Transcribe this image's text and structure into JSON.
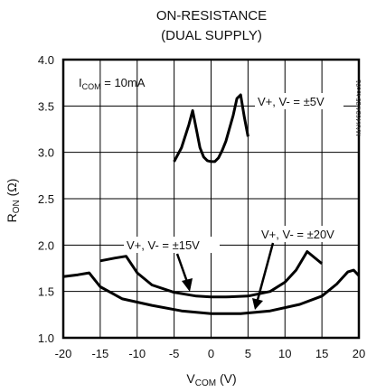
{
  "chart_data": {
    "type": "line",
    "title": "ON-RESISTANCE",
    "subtitle": "(DUAL SUPPLY)",
    "xlabel_main": "V",
    "xlabel_sub": "COM",
    "xlabel_unit": " (V)",
    "ylabel_main": "R",
    "ylabel_sub": "ON",
    "ylabel_unit": " (Ω)",
    "xlim": [
      -20,
      20
    ],
    "ylim": [
      1.0,
      4.0
    ],
    "xticks": [
      -20,
      -15,
      -10,
      -5,
      0,
      5,
      10,
      15,
      20
    ],
    "xtick_labels": [
      "-20",
      "-15",
      "-10",
      "-5",
      "0",
      "5",
      "10",
      "15",
      "20"
    ],
    "yticks": [
      1.0,
      1.5,
      2.0,
      2.5,
      3.0,
      3.5,
      4.0
    ],
    "ytick_labels": [
      "1.0",
      "1.5",
      "2.0",
      "2.5",
      "3.0",
      "3.5",
      "4.0"
    ],
    "grid": true,
    "condition_main": "I",
    "condition_sub": "COM",
    "condition_rest": " = 10mA",
    "series": [
      {
        "name": "V+, V- = ±5V",
        "x": [
          -5,
          -4,
          -3,
          -2.5,
          -2,
          -1.5,
          -1,
          -0.5,
          0,
          0.5,
          1,
          1.5,
          2,
          3,
          3.5,
          4,
          4.5,
          5
        ],
        "y": [
          2.9,
          3.05,
          3.3,
          3.45,
          3.25,
          3.05,
          2.95,
          2.91,
          2.9,
          2.9,
          2.94,
          3.02,
          3.12,
          3.4,
          3.58,
          3.62,
          3.38,
          3.17
        ]
      },
      {
        "name": "V+, V- = ±15V",
        "x": [
          -15,
          -13,
          -11.5,
          -10,
          -8,
          -5,
          -2,
          0,
          2,
          5,
          8,
          10,
          11.5,
          13,
          15
        ],
        "y": [
          1.83,
          1.86,
          1.88,
          1.7,
          1.57,
          1.49,
          1.45,
          1.44,
          1.44,
          1.45,
          1.5,
          1.6,
          1.73,
          1.93,
          1.8
        ]
      },
      {
        "name": "V+, V- = ±20V",
        "x": [
          -20,
          -18,
          -16.5,
          -15,
          -12,
          -8,
          -4,
          0,
          4,
          8,
          12,
          15,
          17,
          18.5,
          19.3,
          20
        ],
        "y": [
          1.66,
          1.68,
          1.7,
          1.55,
          1.42,
          1.35,
          1.29,
          1.26,
          1.26,
          1.29,
          1.36,
          1.45,
          1.58,
          1.71,
          1.73,
          1.67
        ]
      }
    ],
    "annotations": [
      {
        "text": "V+, V- = ±5V",
        "series": 0
      },
      {
        "text": "V+, V- = ±15V",
        "series": 1
      },
      {
        "text": "V+, V- = ±20V",
        "series": 2
      }
    ],
    "watermark": "MAX4624/25 toc01"
  }
}
